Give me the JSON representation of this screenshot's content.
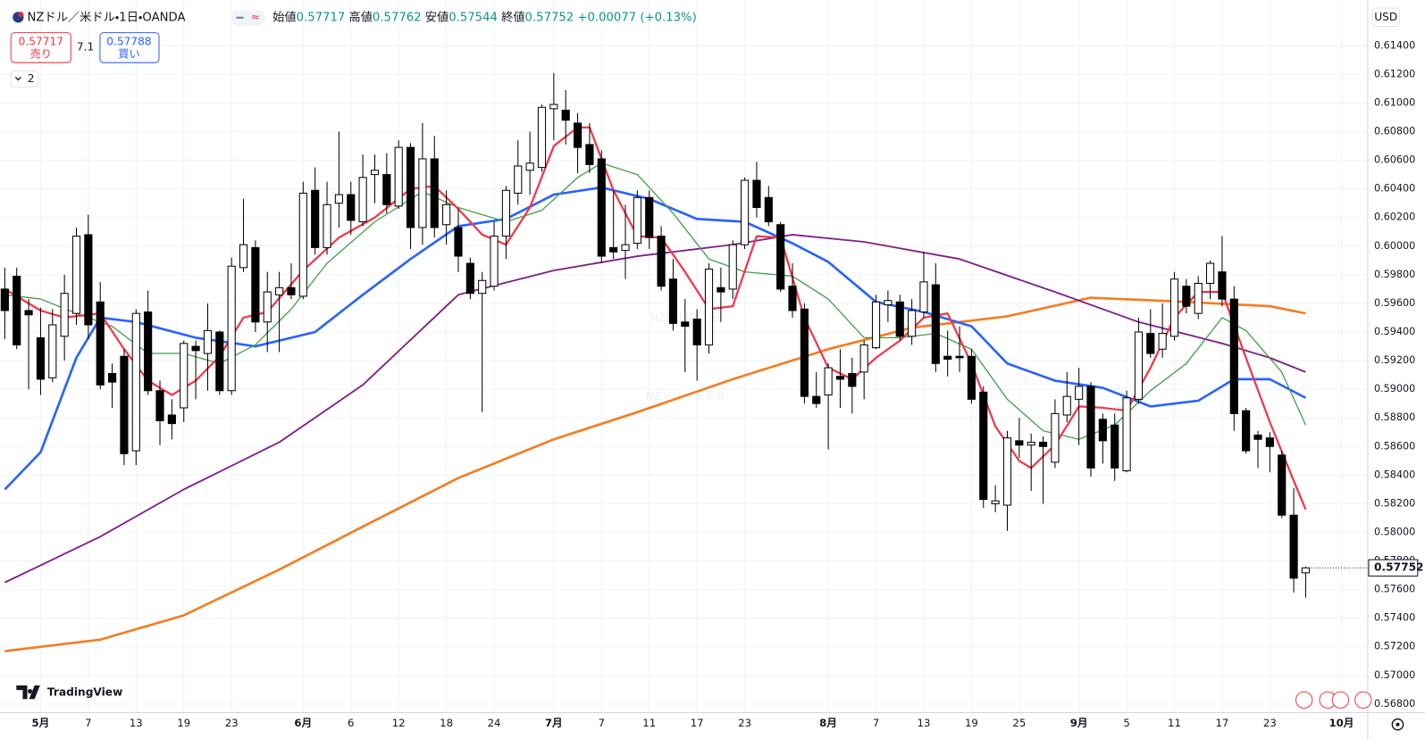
{
  "header": {
    "symbol": "NZドル／米ドル・1日・OANDA",
    "ohlc_labels": [
      "始値",
      "高値",
      "安値",
      "終値"
    ],
    "change": "+0.00077 (+0.13%)",
    "sell_price": "0.57717",
    "sell_label": "売り",
    "spread": "7.1",
    "buy_price": "0.57788",
    "buy_label": "買い",
    "indicator_count": "2",
    "currency": "USD",
    "watermark_symbol": "NZDUSD, 1日",
    "watermark_name": "NZドル／米ドル",
    "brand": "TradingView"
  },
  "chart_data": {
    "type": "candlestick",
    "open": [
      0.597,
      0.5979,
      0.5955,
      0.5936,
      0.5908,
      0.5937,
      0.5953,
      0.6008,
      0.5961,
      0.5911,
      0.5923,
      0.5857,
      0.5954,
      0.5899,
      0.5882,
      0.5887,
      0.593,
      0.5925,
      0.594,
      0.5899,
      0.5985,
      0.5999,
      0.5947,
      0.5966,
      0.5971,
      0.5965,
      0.6039,
      0.5999,
      0.603,
      0.6036,
      0.6017,
      0.605,
      0.605,
      0.6028,
      0.6069,
      0.6013,
      0.6061,
      0.6015,
      0.6013,
      0.5988,
      0.5967,
      0.5972,
      0.6007,
      0.6037,
      0.6053,
      0.6055,
      0.6096,
      0.6095,
      0.6086,
      0.6071,
      0.6061,
      0.5999,
      0.5997,
      0.6002,
      0.6034,
      0.6007,
      0.5977,
      0.5947,
      0.5949,
      0.5931,
      0.5971,
      0.597,
      0.6001,
      0.6046,
      0.6034,
      0.6015,
      0.5972,
      0.5956,
      0.5895,
      0.5896,
      0.5909,
      0.5911,
      0.5912,
      0.5929,
      0.5959,
      0.5961,
      0.5937,
      0.5954,
      0.5973,
      0.5923,
      0.5923,
      0.5923,
      0.5898,
      0.582,
      0.5819,
      0.5864,
      0.5861,
      0.5863,
      0.5849,
      0.5882,
      0.5893,
      0.5902,
      0.5879,
      0.5875,
      0.5843,
      0.5893,
      0.5939,
      0.5928,
      0.5937,
      0.5972,
      0.5953,
      0.5974,
      0.5982,
      0.5963,
      0.5885,
      0.5868,
      0.5866,
      0.5854,
      0.5812,
      0.57717
    ],
    "high": [
      0.5985,
      0.5985,
      0.5963,
      0.5957,
      0.5956,
      0.598,
      0.6013,
      0.6022,
      0.5975,
      0.5918,
      0.5928,
      0.5956,
      0.5969,
      0.5906,
      0.5893,
      0.5934,
      0.5934,
      0.596,
      0.5941,
      0.5992,
      0.6033,
      0.6004,
      0.5982,
      0.5982,
      0.5988,
      0.6045,
      0.6055,
      0.6045,
      0.608,
      0.6045,
      0.6064,
      0.6064,
      0.6065,
      0.6074,
      0.6072,
      0.6086,
      0.6077,
      0.6039,
      0.6026,
      0.5992,
      0.5982,
      0.6017,
      0.6042,
      0.6074,
      0.608,
      0.6099,
      0.6121,
      0.6109,
      0.6093,
      0.6086,
      0.6067,
      0.6039,
      0.6029,
      0.6039,
      0.6039,
      0.6014,
      0.5991,
      0.5963,
      0.5956,
      0.5988,
      0.5985,
      0.6004,
      0.6048,
      0.6059,
      0.6042,
      0.6017,
      0.5988,
      0.596,
      0.5912,
      0.5918,
      0.5928,
      0.5922,
      0.5934,
      0.5966,
      0.5969,
      0.5966,
      0.5963,
      0.5996,
      0.5988,
      0.5941,
      0.5944,
      0.5928,
      0.5902,
      0.5833,
      0.5871,
      0.588,
      0.5869,
      0.5867,
      0.5893,
      0.5912,
      0.5915,
      0.5905,
      0.5883,
      0.5883,
      0.5899,
      0.595,
      0.5956,
      0.596,
      0.5982,
      0.5977,
      0.5979,
      0.599,
      0.6007,
      0.5972,
      0.5887,
      0.5871,
      0.587,
      0.5857,
      0.5831,
      0.57762
    ],
    "low": [
      0.5935,
      0.5928,
      0.59,
      0.5896,
      0.5905,
      0.592,
      0.5945,
      0.5935,
      0.59,
      0.5887,
      0.5847,
      0.5847,
      0.5896,
      0.5861,
      0.5865,
      0.5877,
      0.5893,
      0.5899,
      0.5896,
      0.5896,
      0.5982,
      0.594,
      0.5926,
      0.5926,
      0.5963,
      0.5963,
      0.5994,
      0.5994,
      0.6013,
      0.6008,
      0.6014,
      0.603,
      0.6023,
      0.6026,
      0.5998,
      0.6001,
      0.6006,
      0.6001,
      0.5982,
      0.5963,
      0.5884,
      0.5969,
      0.5991,
      0.6029,
      0.6036,
      0.6052,
      0.6074,
      0.6071,
      0.6051,
      0.6051,
      0.5988,
      0.5991,
      0.5977,
      0.5998,
      0.5998,
      0.5969,
      0.5941,
      0.5912,
      0.5906,
      0.5925,
      0.5947,
      0.5963,
      0.5998,
      0.602,
      0.6014,
      0.5968,
      0.595,
      0.589,
      0.5887,
      0.5858,
      0.5887,
      0.5883,
      0.5893,
      0.5928,
      0.5947,
      0.5934,
      0.5931,
      0.595,
      0.5912,
      0.5909,
      0.5912,
      0.589,
      0.5817,
      0.5814,
      0.5801,
      0.5852,
      0.5829,
      0.582,
      0.5845,
      0.5877,
      0.5861,
      0.5839,
      0.5848,
      0.5836,
      0.5842,
      0.589,
      0.5922,
      0.5922,
      0.5934,
      0.5953,
      0.5949,
      0.5963,
      0.5958,
      0.5871,
      0.5855,
      0.5845,
      0.5842,
      0.581,
      0.5758,
      0.57544
    ],
    "close": [
      0.5955,
      0.5931,
      0.5952,
      0.5907,
      0.5945,
      0.5967,
      0.6007,
      0.5945,
      0.5903,
      0.5905,
      0.5855,
      0.5953,
      0.5899,
      0.5878,
      0.5876,
      0.5932,
      0.5927,
      0.5941,
      0.5899,
      0.5986,
      0.6001,
      0.5947,
      0.5968,
      0.5971,
      0.5966,
      0.6037,
      0.5999,
      0.6029,
      0.6036,
      0.6018,
      0.6048,
      0.6053,
      0.6029,
      0.6069,
      0.6013,
      0.6061,
      0.6013,
      0.6029,
      0.5993,
      0.5967,
      0.5976,
      0.6007,
      0.6039,
      0.6056,
      0.6058,
      0.6097,
      0.6099,
      0.6088,
      0.6069,
      0.6057,
      0.5993,
      0.5996,
      0.6001,
      0.6034,
      0.6006,
      0.5972,
      0.5946,
      0.5944,
      0.5931,
      0.5984,
      0.5968,
      0.6001,
      0.6046,
      0.6027,
      0.6017,
      0.597,
      0.5955,
      0.5895,
      0.589,
      0.5915,
      0.5907,
      0.5902,
      0.5931,
      0.5961,
      0.5962,
      0.5937,
      0.5955,
      0.5975,
      0.5918,
      0.5921,
      0.5922,
      0.5893,
      0.5823,
      0.5822,
      0.5866,
      0.5861,
      0.5863,
      0.586,
      0.5883,
      0.5895,
      0.5902,
      0.5845,
      0.5864,
      0.5845,
      0.5894,
      0.594,
      0.5925,
      0.5939,
      0.5977,
      0.5958,
      0.5974,
      0.5988,
      0.5963,
      0.5883,
      0.5857,
      0.5865,
      0.586,
      0.5812,
      0.5768,
      0.57752
    ],
    "up_color": "#ffffff",
    "down_color": "#000000",
    "overlays": [
      {
        "color": "#f57c1f",
        "x": [
          0,
          8,
          15,
          23,
          30,
          38,
          46,
          53,
          61,
          69,
          76,
          84,
          91,
          99,
          106,
          109
        ],
        "values": [
          0.5717,
          0.5725,
          0.5742,
          0.5774,
          0.5804,
          0.5838,
          0.5865,
          0.5884,
          0.5907,
          0.5928,
          0.5943,
          0.5951,
          0.5964,
          0.5961,
          0.5958,
          0.5953
        ]
      },
      {
        "color": "#801f8a",
        "x": [
          0,
          8,
          15,
          23,
          30,
          38,
          46,
          53,
          61,
          66,
          72,
          80,
          88,
          95,
          102,
          106,
          109
        ],
        "values": [
          0.5765,
          0.5797,
          0.583,
          0.5863,
          0.5903,
          0.5966,
          0.5983,
          0.5993,
          0.6001,
          0.6008,
          0.6003,
          0.5991,
          0.5968,
          0.5947,
          0.5932,
          0.5922,
          0.5912
        ]
      },
      {
        "color": "#2962ff",
        "x": [
          0,
          3,
          6,
          8,
          11,
          16,
          21,
          26,
          30,
          34,
          38,
          42,
          46,
          50,
          54,
          58,
          62,
          66,
          69,
          73,
          77,
          81,
          84,
          88,
          92,
          96,
          100,
          103,
          106,
          109
        ],
        "values": [
          0.583,
          0.5856,
          0.5922,
          0.595,
          0.5947,
          0.5936,
          0.593,
          0.594,
          0.5966,
          0.5991,
          0.6014,
          0.6019,
          0.6036,
          0.6041,
          0.6033,
          0.6019,
          0.6017,
          0.6002,
          0.5989,
          0.5961,
          0.5954,
          0.5944,
          0.5918,
          0.5906,
          0.5901,
          0.5888,
          0.5892,
          0.5907,
          0.5907,
          0.5894
        ]
      },
      {
        "color": "#43a047",
        "x": [
          0,
          3,
          6,
          9,
          12,
          15,
          18,
          21,
          24,
          27,
          31,
          35,
          38,
          42,
          45,
          48,
          50,
          53,
          56,
          59,
          62,
          66,
          69,
          72,
          75,
          78,
          81,
          84,
          87,
          90,
          93,
          96,
          99,
          102,
          104,
          107,
          109
        ],
        "values": [
          0.5966,
          0.5963,
          0.5953,
          0.5944,
          0.5925,
          0.5925,
          0.5918,
          0.5931,
          0.5956,
          0.5988,
          0.6017,
          0.6038,
          0.6027,
          0.6017,
          0.6025,
          0.6048,
          0.6058,
          0.605,
          0.6023,
          0.5991,
          0.5982,
          0.5979,
          0.5963,
          0.5936,
          0.5936,
          0.5939,
          0.5928,
          0.5893,
          0.5871,
          0.5865,
          0.5875,
          0.5899,
          0.5918,
          0.595,
          0.5941,
          0.5912,
          0.5875
        ]
      },
      {
        "color": "#f23645",
        "x": [
          0,
          3,
          5,
          8,
          10,
          12,
          14,
          16,
          18,
          20,
          22,
          25,
          28,
          31,
          34,
          36,
          38,
          40,
          42,
          44,
          46,
          48,
          49,
          51,
          53,
          55,
          57,
          59,
          61,
          63,
          65,
          67,
          69,
          71,
          73,
          75,
          77,
          79,
          81,
          83,
          85,
          86,
          88,
          90,
          92,
          94,
          96,
          98,
          100,
          102,
          104,
          106,
          108,
          109
        ],
        "values": [
          0.597,
          0.5955,
          0.595,
          0.5953,
          0.5928,
          0.5906,
          0.5896,
          0.5906,
          0.5923,
          0.595,
          0.5954,
          0.5983,
          0.6006,
          0.602,
          0.604,
          0.6042,
          0.6026,
          0.6008,
          0.6001,
          0.6027,
          0.607,
          0.6083,
          0.6083,
          0.6039,
          0.6007,
          0.6006,
          0.5982,
          0.5956,
          0.5958,
          0.6007,
          0.6006,
          0.595,
          0.5915,
          0.5907,
          0.5922,
          0.5934,
          0.595,
          0.5953,
          0.5918,
          0.5874,
          0.585,
          0.5845,
          0.5861,
          0.5888,
          0.5887,
          0.5885,
          0.5915,
          0.595,
          0.5968,
          0.5968,
          0.5922,
          0.5877,
          0.5836,
          0.5816
        ]
      }
    ],
    "xlim": [
      -0.4,
      114.2
    ],
    "xticks": [
      {
        "value": 3,
        "label": "5月"
      },
      {
        "value": 7,
        "label": "7"
      },
      {
        "value": 11,
        "label": "13"
      },
      {
        "value": 15,
        "label": "19"
      },
      {
        "value": 19,
        "label": "23"
      },
      {
        "value": 25,
        "label": "6月"
      },
      {
        "value": 29,
        "label": "6"
      },
      {
        "value": 33,
        "label": "12"
      },
      {
        "value": 37,
        "label": "18"
      },
      {
        "value": 41,
        "label": "24"
      },
      {
        "value": 46,
        "label": "7月"
      },
      {
        "value": 50,
        "label": "7"
      },
      {
        "value": 54,
        "label": "11"
      },
      {
        "value": 58,
        "label": "17"
      },
      {
        "value": 62,
        "label": "23"
      },
      {
        "value": 69,
        "label": "8月"
      },
      {
        "value": 73,
        "label": "7"
      },
      {
        "value": 77,
        "label": "13"
      },
      {
        "value": 81,
        "label": "19"
      },
      {
        "value": 85,
        "label": "25"
      },
      {
        "value": 90,
        "label": "9月"
      },
      {
        "value": 94,
        "label": "5"
      },
      {
        "value": 98,
        "label": "11"
      },
      {
        "value": 102,
        "label": "17"
      },
      {
        "value": 106,
        "label": "23"
      },
      {
        "value": 112,
        "label": "10月"
      }
    ],
    "month_ticks": [
      0,
      5,
      10,
      15,
      20,
      25
    ],
    "ylim": [
      0.5674,
      0.6172
    ],
    "yticks": [
      {
        "value": 0.568,
        "label": "0.56800"
      },
      {
        "value": 0.57,
        "label": "0.57000"
      },
      {
        "value": 0.572,
        "label": "0.57200"
      },
      {
        "value": 0.574,
        "label": "0.57400"
      },
      {
        "value": 0.576,
        "label": "0.57600"
      },
      {
        "value": 0.578,
        "label": "0.57800"
      },
      {
        "value": 0.58,
        "label": "0.58000"
      },
      {
        "value": 0.582,
        "label": "0.58200"
      },
      {
        "value": 0.584,
        "label": "0.58400"
      },
      {
        "value": 0.586,
        "label": "0.58600"
      },
      {
        "value": 0.588,
        "label": "0.58800"
      },
      {
        "value": 0.59,
        "label": "0.59000"
      },
      {
        "value": 0.592,
        "label": "0.59200"
      },
      {
        "value": 0.594,
        "label": "0.59400"
      },
      {
        "value": 0.596,
        "label": "0.59600"
      },
      {
        "value": 0.598,
        "label": "0.59800"
      },
      {
        "value": 0.6,
        "label": "0.60000"
      },
      {
        "value": 0.602,
        "label": "0.60200"
      },
      {
        "value": 0.604,
        "label": "0.60400"
      },
      {
        "value": 0.606,
        "label": "0.60600"
      },
      {
        "value": 0.608,
        "label": "0.60800"
      },
      {
        "value": 0.61,
        "label": "0.61000"
      },
      {
        "value": 0.612,
        "label": "0.61200"
      },
      {
        "value": 0.614,
        "label": "0.61400"
      }
    ],
    "grid": true
  }
}
